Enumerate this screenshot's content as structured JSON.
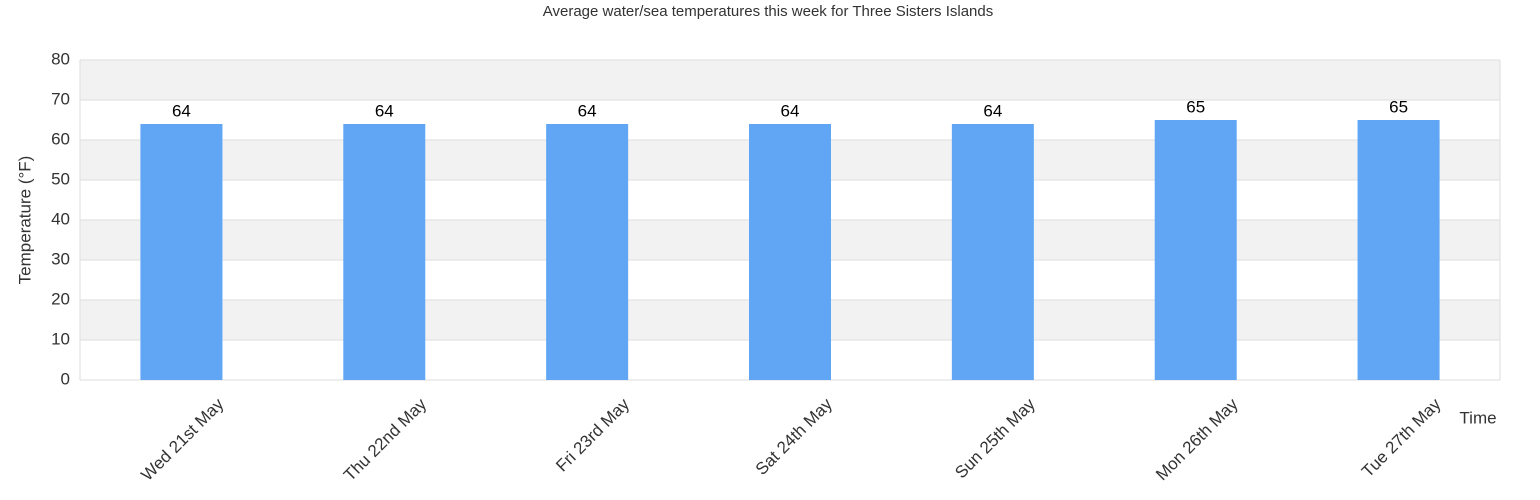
{
  "chart_data": {
    "type": "bar",
    "title": "Average water/sea temperatures this week for Three Sisters Islands",
    "categories": [
      "Wed 21st May",
      "Thu 22nd May",
      "Fri 23rd May",
      "Sat 24th May",
      "Sun 25th May",
      "Mon 26th May",
      "Tue 27th May"
    ],
    "values": [
      64,
      64,
      64,
      64,
      64,
      65,
      65
    ],
    "color": "#60a6f5",
    "x_label": "Time",
    "y_label": "Temperature (°F)",
    "ylim": [
      0,
      80
    ],
    "yticks": [
      0,
      10,
      20,
      30,
      40,
      50,
      60,
      70,
      80
    ],
    "grid": true,
    "data_labels": true
  }
}
